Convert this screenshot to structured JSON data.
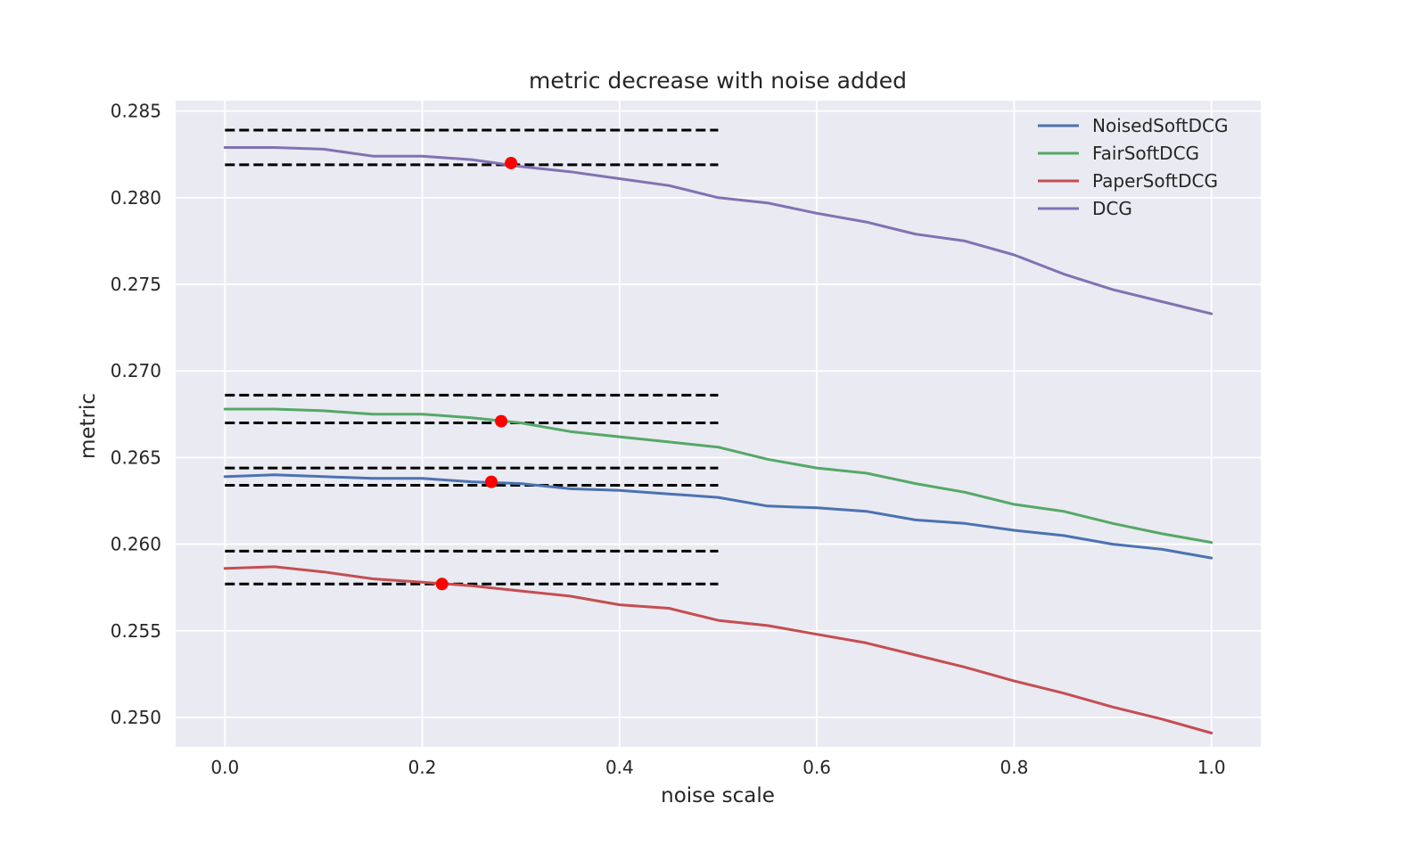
{
  "chart_data": {
    "type": "line",
    "title": "metric decrease with noise added",
    "xlabel": "noise scale",
    "ylabel": "metric",
    "xlim": [
      -0.05,
      1.05
    ],
    "ylim": [
      0.2483,
      0.2856
    ],
    "xticks": [
      0.0,
      0.2,
      0.4,
      0.6,
      0.8,
      1.0
    ],
    "xtick_labels": [
      "0.0",
      "0.2",
      "0.4",
      "0.6",
      "0.8",
      "1.0"
    ],
    "yticks": [
      0.25,
      0.255,
      0.26,
      0.265,
      0.27,
      0.275,
      0.28,
      0.285
    ],
    "ytick_labels": [
      "0.250",
      "0.255",
      "0.260",
      "0.265",
      "0.270",
      "0.275",
      "0.280",
      "0.285"
    ],
    "grid": true,
    "legend_position": "top-right",
    "x": [
      0.0,
      0.05,
      0.1,
      0.15,
      0.2,
      0.25,
      0.3,
      0.35,
      0.4,
      0.45,
      0.5,
      0.55,
      0.6,
      0.65,
      0.7,
      0.75,
      0.8,
      0.85,
      0.9,
      0.95,
      1.0
    ],
    "series": [
      {
        "name": "NoisedSoftDCG",
        "color": "#4c72b0",
        "values": [
          0.2639,
          0.264,
          0.2639,
          0.2638,
          0.2638,
          0.2636,
          0.2635,
          0.2632,
          0.2631,
          0.2629,
          0.2627,
          0.2622,
          0.2621,
          0.2619,
          0.2614,
          0.2612,
          0.2608,
          0.2605,
          0.26,
          0.2597,
          0.2592
        ]
      },
      {
        "name": "FairSoftDCG",
        "color": "#55a868",
        "values": [
          0.2678,
          0.2678,
          0.2677,
          0.2675,
          0.2675,
          0.2673,
          0.267,
          0.2665,
          0.2662,
          0.2659,
          0.2656,
          0.2649,
          0.2644,
          0.2641,
          0.2635,
          0.263,
          0.2623,
          0.2619,
          0.2612,
          0.2606,
          0.2601
        ]
      },
      {
        "name": "PaperSoftDCG",
        "color": "#c44e52",
        "values": [
          0.2586,
          0.2587,
          0.2584,
          0.258,
          0.2578,
          0.2576,
          0.2573,
          0.257,
          0.2565,
          0.2563,
          0.2556,
          0.2553,
          0.2548,
          0.2543,
          0.2536,
          0.2529,
          0.2521,
          0.2514,
          0.2506,
          0.2499,
          0.2491
        ]
      },
      {
        "name": "DCG",
        "color": "#8172b2",
        "values": [
          0.2829,
          0.2829,
          0.2828,
          0.2824,
          0.2824,
          0.2822,
          0.2818,
          0.2815,
          0.2811,
          0.2807,
          0.28,
          0.2797,
          0.2791,
          0.2786,
          0.2779,
          0.2775,
          0.2767,
          0.2756,
          0.2747,
          0.274,
          0.2733
        ]
      }
    ],
    "reference_lines": [
      {
        "y": 0.2839,
        "x_range": [
          0.0,
          0.5
        ],
        "color": "#000000",
        "style": "dashed"
      },
      {
        "y": 0.2819,
        "x_range": [
          0.0,
          0.5
        ],
        "color": "#000000",
        "style": "dashed"
      },
      {
        "y": 0.2686,
        "x_range": [
          0.0,
          0.5
        ],
        "color": "#000000",
        "style": "dashed"
      },
      {
        "y": 0.267,
        "x_range": [
          0.0,
          0.5
        ],
        "color": "#000000",
        "style": "dashed"
      },
      {
        "y": 0.2644,
        "x_range": [
          0.0,
          0.5
        ],
        "color": "#000000",
        "style": "dashed"
      },
      {
        "y": 0.2634,
        "x_range": [
          0.0,
          0.5
        ],
        "color": "#000000",
        "style": "dashed"
      },
      {
        "y": 0.2596,
        "x_range": [
          0.0,
          0.5
        ],
        "color": "#000000",
        "style": "dashed"
      },
      {
        "y": 0.2577,
        "x_range": [
          0.0,
          0.5
        ],
        "color": "#000000",
        "style": "dashed"
      }
    ],
    "markers": [
      {
        "x": 0.29,
        "y": 0.282,
        "color": "#ff0000"
      },
      {
        "x": 0.28,
        "y": 0.2671,
        "color": "#ff0000"
      },
      {
        "x": 0.27,
        "y": 0.2636,
        "color": "#ff0000"
      },
      {
        "x": 0.22,
        "y": 0.2577,
        "color": "#ff0000"
      }
    ],
    "plot_background": "#eaeaf2",
    "grid_color": "#ffffff"
  }
}
